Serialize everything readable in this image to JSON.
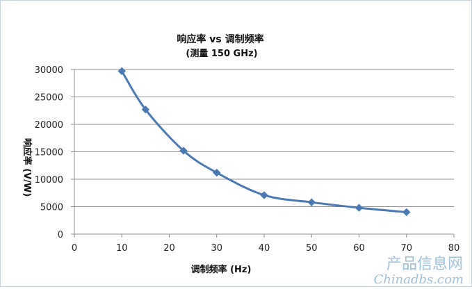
{
  "chart_data": {
    "type": "line",
    "title": "响应率 vs 调制频率",
    "subtitle": "(测量 150 GHz)",
    "xlabel": "调制频率 (Hz)",
    "ylabel": "响应率 (V/W)",
    "xlim": [
      0,
      80
    ],
    "ylim": [
      0,
      30000
    ],
    "xticks": [
      "0",
      "10",
      "20",
      "30",
      "40",
      "50",
      "60",
      "70",
      "80"
    ],
    "yticks": [
      "0",
      "5000",
      "10000",
      "15000",
      "20000",
      "25000",
      "30000"
    ],
    "grid": true,
    "legend": "none",
    "color": "#4a7ab5",
    "marker": "diamond",
    "smooth": true,
    "series": [
      {
        "x": [
          10,
          15,
          23,
          30,
          40,
          50,
          60,
          70
        ],
        "y": [
          29700,
          22700,
          15200,
          11200,
          7100,
          5800,
          4800,
          4000
        ]
      }
    ]
  },
  "watermark": {
    "cn": "产品信息网",
    "en": "Chinadbs.com"
  }
}
